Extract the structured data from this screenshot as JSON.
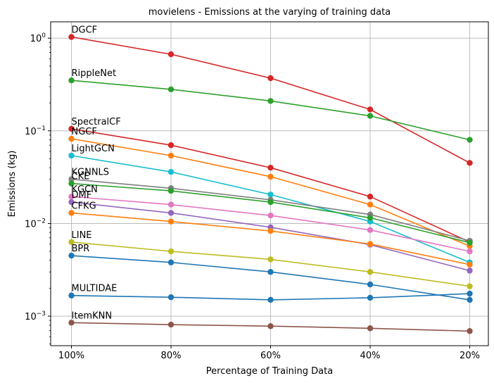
{
  "chart_data": {
    "type": "line",
    "title": "movielens - Emissions at the varying of training data",
    "xlabel": "Percentage of Training Data",
    "ylabel": "Emissions (kg)",
    "yscale": "log",
    "ylim": [
      0.00048,
      1.5
    ],
    "grid": true,
    "categories": [
      "100%",
      "80%",
      "60%",
      "40%",
      "20%"
    ],
    "yticks": [
      {
        "value": 0.001,
        "base": "10",
        "exp": "−3"
      },
      {
        "value": 0.01,
        "base": "10",
        "exp": "−2"
      },
      {
        "value": 0.1,
        "base": "10",
        "exp": "−1"
      },
      {
        "value": 1,
        "base": "10",
        "exp": "0"
      }
    ],
    "series": [
      {
        "name": "DGCF",
        "color": "#d62728",
        "values": [
          1.03,
          0.67,
          0.37,
          0.17,
          0.045
        ]
      },
      {
        "name": "RippleNet",
        "color": "#2ca02c",
        "values": [
          0.35,
          0.28,
          0.21,
          0.145,
          0.08
        ]
      },
      {
        "name": "SpectralCF",
        "color": "#d62728",
        "values": [
          0.105,
          0.07,
          0.04,
          0.0195,
          0.0063
        ]
      },
      {
        "name": "NGCF",
        "color": "#ff7f0e",
        "values": [
          0.082,
          0.054,
          0.032,
          0.016,
          0.0057
        ]
      },
      {
        "name": "LightGCN",
        "color": "#17becf",
        "values": [
          0.054,
          0.036,
          0.0205,
          0.0105,
          0.0038
        ]
      },
      {
        "name": "KGNNLS",
        "color": "#7f7f7f",
        "values": [
          0.03,
          0.024,
          0.018,
          0.0125,
          0.0065
        ]
      },
      {
        "name": "CKE",
        "color": "#2ca02c",
        "values": [
          0.027,
          0.0225,
          0.017,
          0.0115,
          0.0062
        ]
      },
      {
        "name": "KGCN",
        "color": "#e377c2",
        "values": [
          0.0195,
          0.016,
          0.0122,
          0.0085,
          0.005
        ]
      },
      {
        "name": "DMF",
        "color": "#9467bd",
        "values": [
          0.017,
          0.013,
          0.0091,
          0.0059,
          0.0031
        ]
      },
      {
        "name": "CFKG",
        "color": "#ff7f0e",
        "values": [
          0.013,
          0.0105,
          0.0083,
          0.006,
          0.0036
        ]
      },
      {
        "name": "LINE",
        "color": "#bcbd22",
        "values": [
          0.0063,
          0.005,
          0.0041,
          0.003,
          0.0021
        ]
      },
      {
        "name": "BPR",
        "color": "#1f77b4",
        "values": [
          0.0045,
          0.0038,
          0.003,
          0.0022,
          0.0015
        ]
      },
      {
        "name": "MULTIDAE",
        "color": "#1f77b4",
        "values": [
          0.00167,
          0.0016,
          0.0015,
          0.00158,
          0.00175
        ]
      },
      {
        "name": "ItemKNN",
        "color": "#8c564b",
        "values": [
          0.00085,
          0.00081,
          0.00078,
          0.00074,
          0.00069
        ]
      }
    ]
  }
}
